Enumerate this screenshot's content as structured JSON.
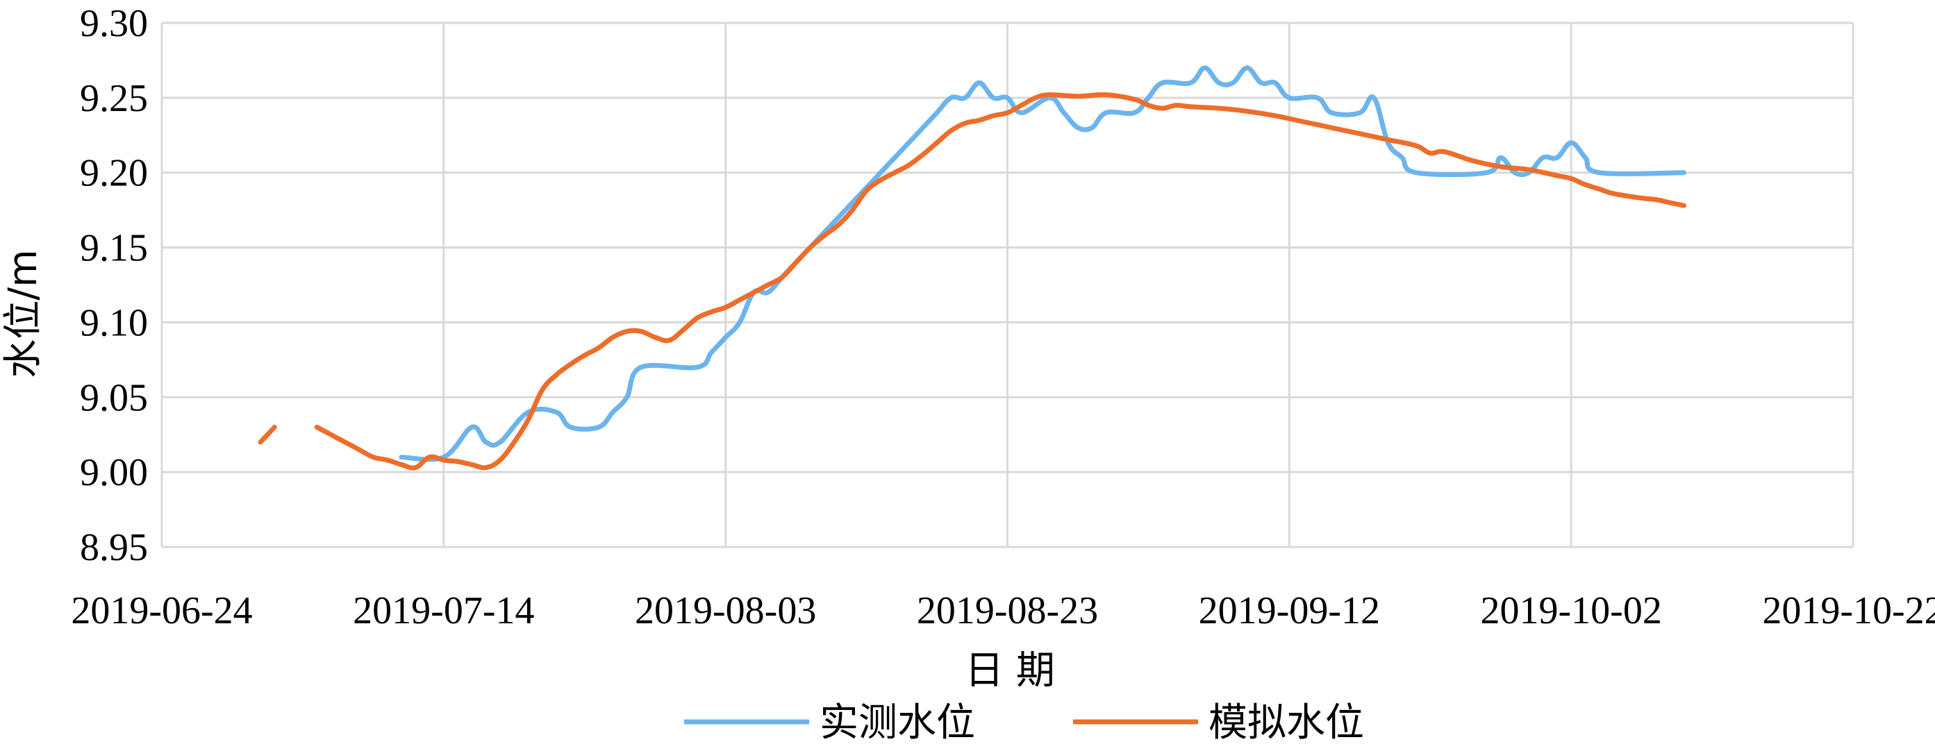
{
  "chart_data": {
    "type": "line",
    "title": "",
    "xlabel": "日 期",
    "ylabel": "水位/m",
    "x_type": "date",
    "xlim": [
      "2019-06-24",
      "2019-10-22"
    ],
    "ylim": [
      8.95,
      9.3
    ],
    "x_ticks": [
      "2019-06-24",
      "2019-07-14",
      "2019-08-03",
      "2019-08-23",
      "2019-09-12",
      "2019-10-02",
      "2019-10-22"
    ],
    "y_ticks": [
      "8.95",
      "9.00",
      "9.05",
      "9.10",
      "9.15",
      "9.20",
      "9.25",
      "9.30"
    ],
    "grid": true,
    "legend_position": "bottom",
    "colors": {
      "measured": "#6cb4ee",
      "simulated": "#ed6d2b",
      "grid": "#d9d9d9"
    },
    "series": [
      {
        "name": "实测水位",
        "segments": [
          [
            [
              "2019-07-11",
              9.01
            ],
            [
              "2019-07-14",
              9.01
            ],
            [
              "2019-07-16",
              9.03
            ],
            [
              "2019-07-17",
              9.02
            ],
            [
              "2019-07-18",
              9.02
            ],
            [
              "2019-07-20",
              9.04
            ],
            [
              "2019-07-22",
              9.04
            ],
            [
              "2019-07-23",
              9.03
            ],
            [
              "2019-07-25",
              9.03
            ],
            [
              "2019-07-26",
              9.04
            ],
            [
              "2019-07-27",
              9.05
            ],
            [
              "2019-07-28",
              9.07
            ],
            [
              "2019-08-01",
              9.07
            ],
            [
              "2019-08-02",
              9.08
            ],
            [
              "2019-08-03",
              9.09
            ],
            [
              "2019-08-04",
              9.1
            ],
            [
              "2019-08-05",
              9.12
            ],
            [
              "2019-08-06",
              9.12
            ],
            [
              "2019-08-07",
              9.13
            ],
            [
              "2019-08-08",
              9.14
            ],
            [
              "2019-08-09",
              9.15
            ],
            [
              "2019-08-10",
              9.16
            ],
            [
              "2019-08-11",
              9.17
            ],
            [
              "2019-08-12",
              9.18
            ],
            [
              "2019-08-13",
              9.19
            ],
            [
              "2019-08-14",
              9.2
            ],
            [
              "2019-08-15",
              9.21
            ],
            [
              "2019-08-16",
              9.22
            ],
            [
              "2019-08-17",
              9.23
            ],
            [
              "2019-08-18",
              9.24
            ],
            [
              "2019-08-19",
              9.25
            ],
            [
              "2019-08-20",
              9.25
            ],
            [
              "2019-08-21",
              9.26
            ],
            [
              "2019-08-22",
              9.25
            ],
            [
              "2019-08-23",
              9.25
            ],
            [
              "2019-08-24",
              9.24
            ],
            [
              "2019-08-26",
              9.25
            ],
            [
              "2019-08-27",
              9.24
            ],
            [
              "2019-08-28",
              9.23
            ],
            [
              "2019-08-29",
              9.23
            ],
            [
              "2019-08-30",
              9.24
            ],
            [
              "2019-09-01",
              9.24
            ],
            [
              "2019-09-02",
              9.25
            ],
            [
              "2019-09-03",
              9.26
            ],
            [
              "2019-09-05",
              9.26
            ],
            [
              "2019-09-06",
              9.27
            ],
            [
              "2019-09-07",
              9.26
            ],
            [
              "2019-09-08",
              9.26
            ],
            [
              "2019-09-09",
              9.27
            ],
            [
              "2019-09-10",
              9.26
            ],
            [
              "2019-09-11",
              9.26
            ],
            [
              "2019-09-12",
              9.25
            ],
            [
              "2019-09-14",
              9.25
            ],
            [
              "2019-09-15",
              9.24
            ],
            [
              "2019-09-17",
              9.24
            ],
            [
              "2019-09-18",
              9.25
            ],
            [
              "2019-09-19",
              9.22
            ],
            [
              "2019-09-20",
              9.21
            ],
            [
              "2019-09-21",
              9.2
            ],
            [
              "2019-09-26",
              9.2
            ],
            [
              "2019-09-27",
              9.21
            ],
            [
              "2019-09-28",
              9.2
            ],
            [
              "2019-09-29",
              9.2
            ],
            [
              "2019-09-30",
              9.21
            ],
            [
              "2019-10-01",
              9.21
            ],
            [
              "2019-10-02",
              9.22
            ],
            [
              "2019-10-03",
              9.21
            ],
            [
              "2019-10-04",
              9.2
            ],
            [
              "2019-10-10",
              9.2
            ]
          ]
        ]
      },
      {
        "name": "模拟水位",
        "segments": [
          [
            [
              "2019-07-01",
              9.02
            ],
            [
              "2019-07-02",
              9.03
            ]
          ],
          [
            [
              "2019-07-05",
              9.03
            ],
            [
              "2019-07-06",
              9.025
            ],
            [
              "2019-07-07",
              9.02
            ],
            [
              "2019-07-08",
              9.015
            ],
            [
              "2019-07-09",
              9.01
            ],
            [
              "2019-07-10",
              9.008
            ],
            [
              "2019-07-11",
              9.005
            ],
            [
              "2019-07-12",
              9.003
            ],
            [
              "2019-07-13",
              9.01
            ],
            [
              "2019-07-14",
              9.008
            ],
            [
              "2019-07-15",
              9.007
            ],
            [
              "2019-07-16",
              9.005
            ],
            [
              "2019-07-17",
              9.003
            ],
            [
              "2019-07-18",
              9.008
            ],
            [
              "2019-07-19",
              9.02
            ],
            [
              "2019-07-20",
              9.035
            ],
            [
              "2019-07-21",
              9.055
            ],
            [
              "2019-07-22",
              9.065
            ],
            [
              "2019-07-23",
              9.072
            ],
            [
              "2019-07-24",
              9.078
            ],
            [
              "2019-07-25",
              9.083
            ],
            [
              "2019-07-26",
              9.09
            ],
            [
              "2019-07-27",
              9.094
            ],
            [
              "2019-07-28",
              9.094
            ],
            [
              "2019-07-29",
              9.09
            ],
            [
              "2019-07-30",
              9.088
            ],
            [
              "2019-07-31",
              9.095
            ],
            [
              "2019-08-01",
              9.103
            ],
            [
              "2019-08-02",
              9.107
            ],
            [
              "2019-08-03",
              9.11
            ],
            [
              "2019-08-04",
              9.115
            ],
            [
              "2019-08-05",
              9.12
            ],
            [
              "2019-08-06",
              9.125
            ],
            [
              "2019-08-07",
              9.13
            ],
            [
              "2019-08-08",
              9.14
            ],
            [
              "2019-08-09",
              9.15
            ],
            [
              "2019-08-10",
              9.158
            ],
            [
              "2019-08-11",
              9.165
            ],
            [
              "2019-08-12",
              9.175
            ],
            [
              "2019-08-13",
              9.188
            ],
            [
              "2019-08-14",
              9.195
            ],
            [
              "2019-08-15",
              9.2
            ],
            [
              "2019-08-16",
              9.205
            ],
            [
              "2019-08-17",
              9.212
            ],
            [
              "2019-08-18",
              9.22
            ],
            [
              "2019-08-19",
              9.228
            ],
            [
              "2019-08-20",
              9.233
            ],
            [
              "2019-08-21",
              9.235
            ],
            [
              "2019-08-22",
              9.238
            ],
            [
              "2019-08-23",
              9.24
            ],
            [
              "2019-08-24",
              9.245
            ],
            [
              "2019-08-25",
              9.25
            ],
            [
              "2019-08-26",
              9.252
            ],
            [
              "2019-08-28",
              9.251
            ],
            [
              "2019-08-30",
              9.252
            ],
            [
              "2019-09-01",
              9.249
            ],
            [
              "2019-09-02",
              9.245
            ],
            [
              "2019-09-03",
              9.243
            ],
            [
              "2019-09-04",
              9.245
            ],
            [
              "2019-09-05",
              9.244
            ],
            [
              "2019-09-07",
              9.243
            ],
            [
              "2019-09-09",
              9.241
            ],
            [
              "2019-09-11",
              9.238
            ],
            [
              "2019-09-13",
              9.234
            ],
            [
              "2019-09-15",
              9.23
            ],
            [
              "2019-09-17",
              9.226
            ],
            [
              "2019-09-19",
              9.222
            ],
            [
              "2019-09-21",
              9.218
            ],
            [
              "2019-09-22",
              9.213
            ],
            [
              "2019-09-23",
              9.214
            ],
            [
              "2019-09-25",
              9.208
            ],
            [
              "2019-09-27",
              9.204
            ],
            [
              "2019-09-29",
              9.202
            ],
            [
              "2019-10-01",
              9.198
            ],
            [
              "2019-10-02",
              9.196
            ],
            [
              "2019-10-03",
              9.192
            ],
            [
              "2019-10-04",
              9.189
            ],
            [
              "2019-10-05",
              9.186
            ],
            [
              "2019-10-07",
              9.183
            ],
            [
              "2019-10-08",
              9.182
            ],
            [
              "2019-10-09",
              9.18
            ],
            [
              "2019-10-10",
              9.178
            ]
          ]
        ]
      }
    ]
  }
}
